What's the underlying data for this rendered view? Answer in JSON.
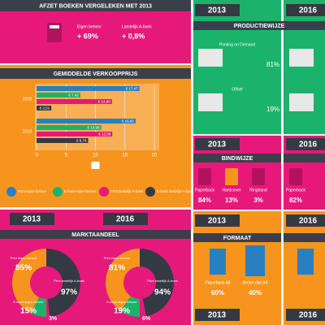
{
  "sales": {
    "title": "AFZET BOEKEN VERGELEKEN MET 2013",
    "items": [
      {
        "label": "Eigen beheer",
        "value": "+ 69%"
      },
      {
        "label": "Landelijk A-boek",
        "value": "+ 0,8%"
      }
    ]
  },
  "price": {
    "title": "GEMIDDELDE VERKOOPPRIJS",
    "groups": [
      "2016",
      "2013"
    ],
    "series": [
      {
        "name": "Print eigen beheer",
        "color": "#2a7fc1",
        "values": [
          17.47,
          16.82
        ],
        "value_labels": [
          "€ 17,47",
          "€ 16,82"
        ]
      },
      {
        "name": "E-boek eigen beheer",
        "color": "#1bb36b",
        "values": [
          7.42,
          10.96
        ],
        "value_labels": [
          "€ 7,42",
          "€ 10,96"
        ]
      },
      {
        "name": "Print landelijk A-boek",
        "color": "#e6197a",
        "values": [
          12.8,
          12.86
        ],
        "value_labels": [
          "€ 12,80",
          "€ 12,86"
        ]
      },
      {
        "name": "E-boek landelijk A-boek",
        "color": "#333a44",
        "values": [
          2.51,
          8.76
        ],
        "value_labels": [
          "€ 2,51",
          "€ 8,76"
        ]
      }
    ],
    "xlim": [
      0,
      20
    ],
    "xticks": [
      0,
      5,
      10,
      15,
      20
    ],
    "xlabel": "€"
  },
  "market": {
    "title": "MARKTAANDEEL",
    "years": [
      {
        "year": "2013",
        "slices": [
          {
            "label": "Print eigen beheer",
            "value": 85,
            "value_label": "85%",
            "color": "#f7941d"
          },
          {
            "label": "E-boek eigen beheer",
            "value": 15,
            "value_label": "15%",
            "color": "#1bb36b"
          },
          {
            "label": "Print landelijk A-boek",
            "value": 97,
            "value_label": "97%",
            "color": "#333a44"
          },
          {
            "label": "E-boek landelijk A-boek",
            "value": 3,
            "value_label": "3%",
            "color": "#e6197a"
          }
        ]
      },
      {
        "year": "2016",
        "slices": [
          {
            "label": "Print eigen beheer",
            "value": 81,
            "value_label": "81%",
            "color": "#f7941d"
          },
          {
            "label": "E-boek eigen beheer",
            "value": 19,
            "value_label": "19%",
            "color": "#1bb36b"
          },
          {
            "label": "Print landelijk A-boek",
            "value": 94,
            "value_label": "94%",
            "color": "#333a44"
          },
          {
            "label": "E-boek landelijk A-boek",
            "value": 6,
            "value_label": "6%",
            "color": "#e6197a"
          }
        ]
      }
    ]
  },
  "production": {
    "years": [
      "2013",
      "2016"
    ],
    "title": "PRODUCTIEWIJZE",
    "items": [
      {
        "label": "Printing on Demand",
        "value": "81%"
      },
      {
        "label": "Offset",
        "value": "19%"
      }
    ]
  },
  "binding": {
    "years": [
      "2013",
      "2016"
    ],
    "title": "BINDWIJZE",
    "items": [
      {
        "label": "Paperback",
        "value": "84%"
      },
      {
        "label": "Hardcover",
        "value": "13%"
      },
      {
        "label": "Ringband",
        "value": "3%"
      }
    ],
    "items_2016": [
      {
        "label": "Paperback",
        "value": "82%"
      }
    ]
  },
  "format": {
    "years": [
      "2013",
      "2016"
    ],
    "title": "FORMAAT",
    "items": [
      {
        "label": "Paperback A5",
        "value": "60%"
      },
      {
        "label": "Groter dan A5",
        "value": "40%"
      }
    ]
  },
  "footer_years": [
    "2013",
    "2016"
  ]
}
